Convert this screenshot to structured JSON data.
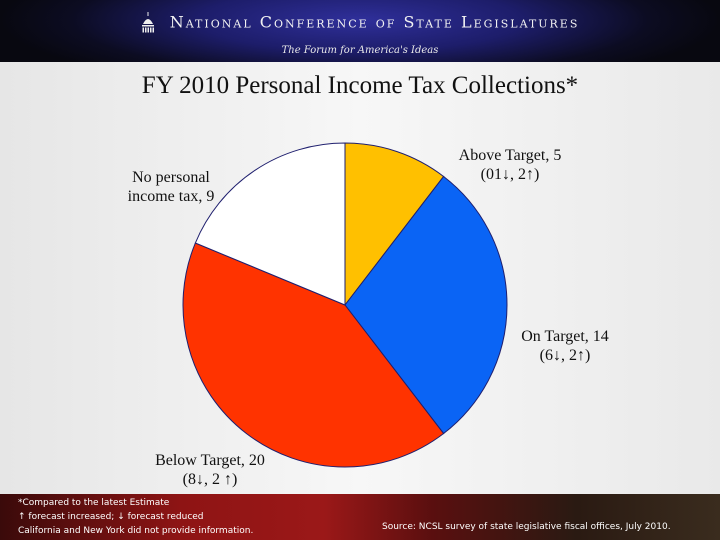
{
  "header": {
    "org_name": "National Conference of State Legislatures",
    "tagline": "The Forum for America's Ideas"
  },
  "colors": {
    "above_target": "#ffc000",
    "on_target": "#0a64f5",
    "below_target": "#ff3300",
    "no_tax": "#ffffff",
    "outline": "#1f1f6e"
  },
  "chart_data": {
    "type": "pie",
    "title": "FY 2010 Personal Income Tax  Collections*",
    "categories": [
      "Above Target",
      "On Target",
      "Below Target",
      "No personal income tax"
    ],
    "values": [
      5,
      14,
      20,
      9
    ],
    "labels": [
      {
        "line1": "Above Target, 5",
        "line2": "(01↓, 2↑)"
      },
      {
        "line1": "On Target, 14",
        "line2": "(6↓,  2↑)"
      },
      {
        "line1": "Below Target, 20",
        "line2": "(8↓, 2 ↑)"
      },
      {
        "line1": "No personal",
        "line2": "income tax, 9"
      }
    ],
    "start_angle": "12 o'clock, clockwise"
  },
  "footer": {
    "note1": "*Compared to the latest Estimate",
    "note2": "↑ forecast increased; ↓ forecast reduced",
    "note3": "California and New York did not provide information.",
    "source": "Source: NCSL survey of state legislative fiscal offices, July 2010."
  }
}
